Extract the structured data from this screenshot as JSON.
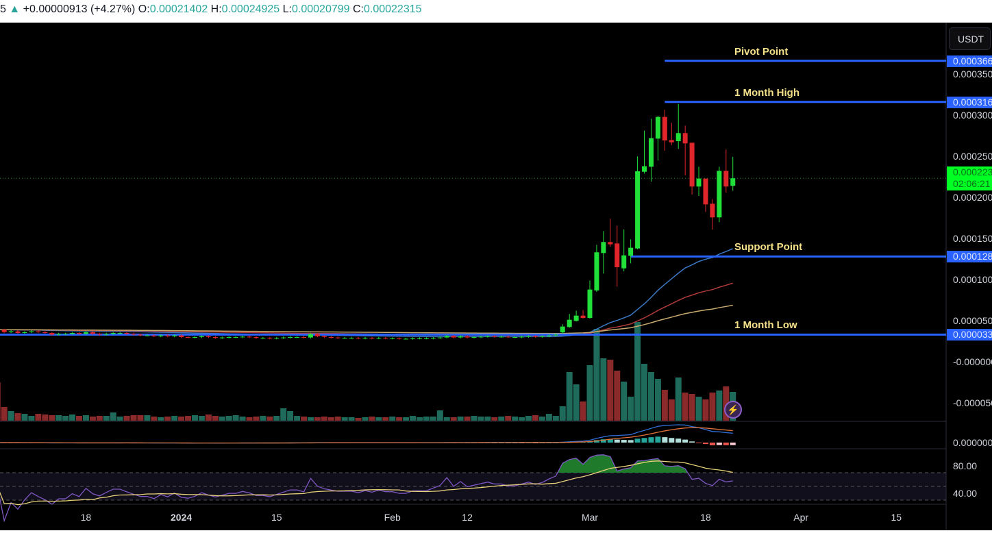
{
  "header": {
    "prefix": "5",
    "arrow": "▲",
    "change": "+0.00000913 (+4.27%)",
    "open_label": "O:",
    "open": "0.00021402",
    "high_label": "H:",
    "high": "0.00024925",
    "low_label": "L:",
    "low": "0.00020799",
    "close_label": "C:",
    "close": "0.00022315"
  },
  "currency_button": "USDT",
  "price_axis": [
    "0.000350",
    "0.000300",
    "0.000250",
    "0.000200",
    "0.000150",
    "0.000100",
    "0.000050",
    "-0.000000",
    "-0.000050"
  ],
  "macd_axis": "0.000000",
  "rsi_axis": [
    "80.00",
    "40.00"
  ],
  "current_price": {
    "value": "0.000223",
    "countdown": "02:06:21",
    "color": "#00ff22"
  },
  "levels": [
    {
      "label": "Pivot Point",
      "value": 0.000366,
      "tag": "0.000366",
      "from": "2024-03-12"
    },
    {
      "label": "1 Month High",
      "value": 0.000316,
      "tag": "0.000316",
      "from": "2024-03-12"
    },
    {
      "label": "Support Point",
      "value": 0.000128,
      "tag": "0.000128",
      "from": "2024-03-07"
    },
    {
      "label": "1 Month Low",
      "value": 3.3e-05,
      "tag": "0.000033",
      "from": "2023-12-05"
    }
  ],
  "x_axis": [
    {
      "label": "18",
      "date": "2023-12-18",
      "bold": false
    },
    {
      "label": "2024",
      "date": "2024-01-01",
      "bold": true
    },
    {
      "label": "15",
      "date": "2024-01-15",
      "bold": false
    },
    {
      "label": "Feb",
      "date": "2024-02-01",
      "bold": false
    },
    {
      "label": "12",
      "date": "2024-02-12",
      "bold": false
    },
    {
      "label": "Mar",
      "date": "2024-03-01",
      "bold": false
    },
    {
      "label": "18",
      "date": "2024-03-18",
      "bold": false
    },
    {
      "label": "Apr",
      "date": "2024-04-01",
      "bold": false
    },
    {
      "label": "15",
      "date": "2024-04-15",
      "bold": false
    }
  ],
  "colors": {
    "up": "#22e03a",
    "down": "#e0262b",
    "vol_up": "#1e6b5c",
    "vol_down": "#8b2a2a",
    "level": "#2962ff",
    "ma_fast": "#3b78c4",
    "ma_mid": "#b03a3a",
    "ma_slow": "#c9aa6e",
    "rsi": "#7e57c2",
    "rsi_ma": "#e8d27a",
    "macd": "#2f6fd6",
    "signal": "#e0723a"
  },
  "chart_data": {
    "type": "candlestick",
    "interval": "1D",
    "quote": "USDT",
    "ylim": [
      -6e-05,
      0.00037
    ],
    "flat_period": {
      "start": "2023-12-05",
      "closes": [
        3.9e-05,
        3.6e-05,
        3.7e-05,
        3.5e-05,
        3.6e-05,
        3.7e-05,
        3.6e-05,
        3.5e-05,
        3.3e-05,
        3.4e-05,
        3.4e-05,
        3.5e-05,
        3.4e-05,
        3.6e-05,
        3.4e-05,
        3.3e-05,
        3.4e-05,
        3.5e-05,
        3.5e-05,
        3.4e-05,
        3.3e-05,
        3.2e-05,
        3.2e-05,
        3.1e-05,
        3.2e-05,
        3.1e-05,
        3.2e-05,
        3e-05,
        2.95e-05,
        3e-05,
        3.1e-05,
        3e-05,
        2.9e-05,
        2.95e-05,
        3e-05,
        3e-05,
        3.05e-05,
        3e-05,
        2.9e-05,
        2.9e-05,
        2.85e-05,
        2.9e-05,
        2.95e-05,
        3e-05,
        3e-05,
        2.95e-05,
        3.35e-05,
        3.1e-05,
        3e-05,
        2.95e-05,
        2.9e-05,
        2.9e-05,
        2.9e-05,
        2.85e-05,
        2.9e-05,
        2.85e-05,
        2.9e-05,
        2.85e-05,
        2.85e-05,
        2.8e-05,
        2.8e-05,
        2.85e-05,
        2.85e-05,
        2.85e-05,
        2.9e-05,
        2.95e-05,
        3.15e-05,
        2.95e-05,
        3.1e-05,
        2.95e-05,
        3e-05,
        3.05e-05,
        3.1e-05,
        3.05e-05,
        3.05e-05,
        3e-05,
        3e-05,
        3.05e-05,
        3.1e-05,
        3.05e-05,
        3.1e-05,
        3.2e-05,
        3.3e-05
      ],
      "volumes": [
        56,
        20,
        14,
        11,
        10,
        7,
        10,
        9,
        8,
        8,
        7,
        9,
        7,
        8,
        6,
        7,
        7,
        12,
        6,
        7,
        8,
        8,
        8,
        6,
        5,
        6,
        7,
        6,
        7,
        8,
        7,
        9,
        7,
        6,
        7,
        8,
        6,
        5,
        6,
        7,
        6,
        7,
        18,
        14,
        7,
        6,
        5,
        5,
        6,
        5,
        6,
        5,
        5,
        4,
        5,
        6,
        5,
        5,
        6,
        5,
        5,
        7,
        5,
        6,
        6,
        15,
        5,
        5,
        6,
        6,
        7,
        6,
        6,
        5,
        6,
        7,
        6,
        5,
        7,
        8,
        6,
        10,
        7
      ]
    },
    "candles": [
      {
        "date": "2024-02-26",
        "o": 3.58e-05,
        "h": 4.56e-05,
        "l": 3.44e-05,
        "c": 4.28e-05,
        "v": 21
      },
      {
        "date": "2024-02-27",
        "o": 4.22e-05,
        "h": 5.81e-05,
        "l": 4.14e-05,
        "c": 5.11e-05,
        "v": 71
      },
      {
        "date": "2024-02-28",
        "o": 4.97e-05,
        "h": 6.22e-05,
        "l": 4.89e-05,
        "c": 5.61e-05,
        "v": 53
      },
      {
        "date": "2024-02-29",
        "o": 5.61e-05,
        "h": 6.28e-05,
        "l": 5.25e-05,
        "c": 5.33e-05,
        "v": 28
      },
      {
        "date": "2024-03-01",
        "o": 5.33e-05,
        "h": 9.89e-05,
        "l": 5.25e-05,
        "c": 8.78e-05,
        "v": 81
      },
      {
        "date": "2024-03-02",
        "o": 8.67e-05,
        "h": 0.0001422,
        "l": 8.5e-05,
        "c": 0.0001331,
        "v": 134
      },
      {
        "date": "2024-03-03",
        "o": 0.0001322,
        "h": 0.0001589,
        "l": 0.0001072,
        "c": 0.0001456,
        "v": 91
      },
      {
        "date": "2024-03-04",
        "o": 0.0001456,
        "h": 0.0001739,
        "l": 0.00014,
        "c": 0.0001428,
        "v": 89
      },
      {
        "date": "2024-03-05",
        "o": 0.0001439,
        "h": 0.0001656,
        "l": 9.14e-05,
        "c": 0.000115,
        "v": 73
      },
      {
        "date": "2024-03-06",
        "o": 0.0001136,
        "h": 0.0001608,
        "l": 0.00011,
        "c": 0.0001294,
        "v": 57
      },
      {
        "date": "2024-03-07",
        "o": 0.0001289,
        "h": 0.0001489,
        "l": 0.0001197,
        "c": 0.0001386,
        "v": 35
      },
      {
        "date": "2024-03-08",
        "o": 0.0001378,
        "h": 0.0002497,
        "l": 0.0001367,
        "c": 0.0002317,
        "v": 144
      },
      {
        "date": "2024-03-09",
        "o": 0.0002311,
        "h": 0.0002811,
        "l": 0.0002289,
        "c": 0.0002378,
        "v": 83
      },
      {
        "date": "2024-03-10",
        "o": 0.0002372,
        "h": 0.0002956,
        "l": 0.0002192,
        "c": 0.0002719,
        "v": 71
      },
      {
        "date": "2024-03-11",
        "o": 0.0002714,
        "h": 0.000299,
        "l": 0.0002447,
        "c": 0.0002978,
        "v": 61
      },
      {
        "date": "2024-03-12",
        "o": 0.0002978,
        "h": 0.0003067,
        "l": 0.0002567,
        "c": 0.0002692,
        "v": 45
      },
      {
        "date": "2024-03-13",
        "o": 0.0002697,
        "h": 0.0002906,
        "l": 0.0002636,
        "c": 0.0002669,
        "v": 31
      },
      {
        "date": "2024-03-14",
        "o": 0.0002683,
        "h": 0.0003136,
        "l": 0.0002589,
        "c": 0.0002781,
        "v": 63
      },
      {
        "date": "2024-03-15",
        "o": 0.0002781,
        "h": 0.0002872,
        "l": 0.0002267,
        "c": 0.0002656,
        "v": 41
      },
      {
        "date": "2024-03-16",
        "o": 0.0002664,
        "h": 0.0002664,
        "l": 0.0002033,
        "c": 0.0002131,
        "v": 39
      },
      {
        "date": "2024-03-17",
        "o": 0.0002131,
        "h": 0.0002372,
        "l": 0.0002017,
        "c": 0.0002228,
        "v": 35
      },
      {
        "date": "2024-03-18",
        "o": 0.0002228,
        "h": 0.0002228,
        "l": 0.0001822,
        "c": 0.0001914,
        "v": 31
      },
      {
        "date": "2024-03-19",
        "o": 0.0001922,
        "h": 0.0001978,
        "l": 0.0001608,
        "c": 0.0001756,
        "v": 41
      },
      {
        "date": "2024-03-20",
        "o": 0.0001756,
        "h": 0.0002372,
        "l": 0.0001697,
        "c": 0.0002322,
        "v": 44
      },
      {
        "date": "2024-03-21",
        "o": 0.0002322,
        "h": 0.0002581,
        "l": 0.0002058,
        "c": 0.0002131,
        "v": 50
      },
      {
        "date": "2024-03-22",
        "o": 0.00021402,
        "h": 0.00024925,
        "l": 0.00020799,
        "c": 0.00022315,
        "v": 42
      }
    ],
    "rsi_levels": [
      70,
      50,
      30
    ],
    "grid": false
  }
}
